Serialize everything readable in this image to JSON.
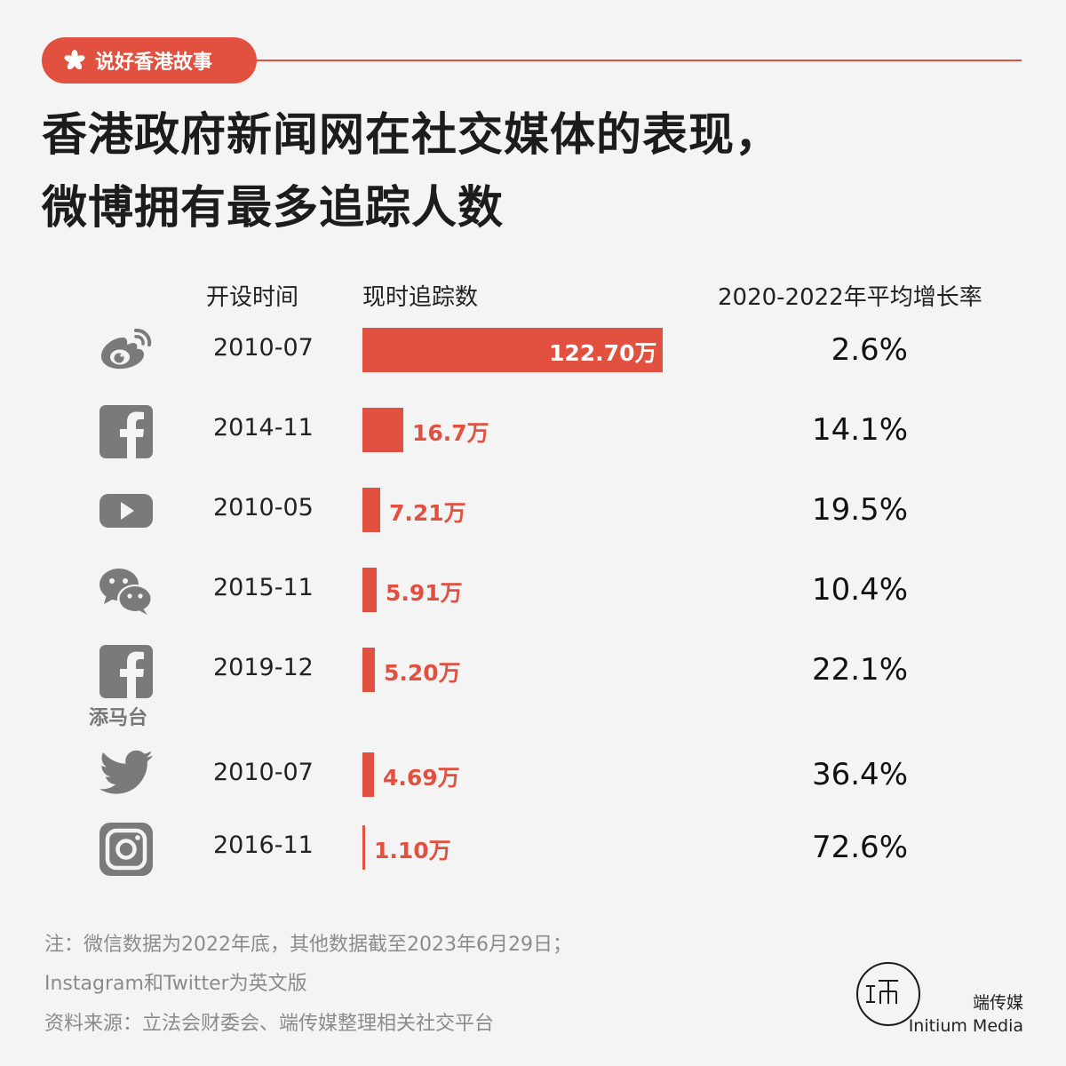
{
  "header": {
    "tag_label": "说好香港故事",
    "title_line1": "香港政府新闻网在社交媒体的表现，",
    "title_line2": "微博拥有最多追踪人数"
  },
  "columns": {
    "date": "开设时间",
    "followers": "现时追踪数",
    "growth": "2020-2022年平均增长率"
  },
  "chart_data": {
    "type": "bar",
    "categories": [
      "weibo",
      "facebook",
      "youtube",
      "wechat",
      "facebook-timmatoi",
      "twitter",
      "instagram"
    ],
    "values": [
      122.7,
      16.7,
      7.21,
      5.91,
      5.2,
      4.69,
      1.1
    ],
    "unit": "万",
    "rows": [
      {
        "icon": "weibo-icon",
        "date": "2010-07",
        "value": 122.7,
        "label": "122.70万",
        "growth": "2.6%"
      },
      {
        "icon": "facebook-icon",
        "date": "2014-11",
        "value": 16.7,
        "label": "16.7万",
        "growth": "14.1%"
      },
      {
        "icon": "youtube-icon",
        "date": "2010-05",
        "value": 7.21,
        "label": "7.21万",
        "growth": "19.5%"
      },
      {
        "icon": "wechat-icon",
        "date": "2015-11",
        "value": 5.91,
        "label": "5.91万",
        "growth": "10.4%"
      },
      {
        "icon": "facebook-icon",
        "sub_label": "添马台",
        "date": "2019-12",
        "value": 5.2,
        "label": "5.20万",
        "growth": "22.1%"
      },
      {
        "icon": "twitter-icon",
        "date": "2010-07",
        "value": 4.69,
        "label": "4.69万",
        "growth": "36.4%"
      },
      {
        "icon": "instagram-icon",
        "date": "2016-11",
        "value": 1.1,
        "label": "1.10万",
        "growth": "72.6%"
      }
    ]
  },
  "footer": {
    "note_line1": "注：微信数据为2022年底，其他数据截至2023年6月29日；",
    "note_line2": "Instagram和Twitter为英文版",
    "source": "资料来源：立法会财委会、端传媒整理相关社交平台",
    "brand_cn": "端传媒",
    "brand_en": "Initium Media"
  },
  "colors": {
    "accent": "#e2503f",
    "icon_gray": "#7a7a7a",
    "background": "#f4f4f4"
  }
}
